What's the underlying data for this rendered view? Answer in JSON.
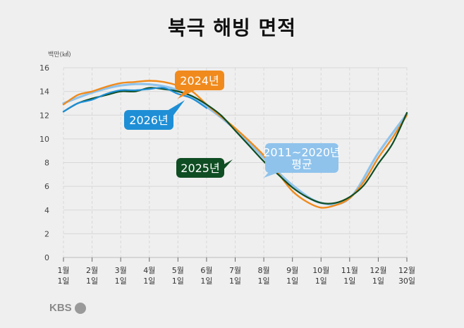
{
  "title": "북극 해빙 면적",
  "unit": "백만(㎢)",
  "logo": "KBS",
  "colors": {
    "2024": "#f08a1c",
    "2025": "#0f4d23",
    "2026": "#1e8fd6",
    "avg": "#8fc3ec",
    "grid": "#d8d8d8"
  },
  "chart_data": {
    "type": "line",
    "title": "북극 해빙 면적",
    "ylabel": "백만(㎢)",
    "ylim": [
      0,
      16
    ],
    "yticks": [
      0,
      2,
      4,
      6,
      8,
      10,
      12,
      14,
      16
    ],
    "x_tick_labels": [
      {
        "month": "1월",
        "day": "1일"
      },
      {
        "month": "2월",
        "day": "1일"
      },
      {
        "month": "3월",
        "day": "1일"
      },
      {
        "month": "4월",
        "day": "1일"
      },
      {
        "month": "5월",
        "day": "1일"
      },
      {
        "month": "6월",
        "day": "1일"
      },
      {
        "month": "7월",
        "day": "1일"
      },
      {
        "month": "8월",
        "day": "1일"
      },
      {
        "month": "9월",
        "day": "1일"
      },
      {
        "month": "10월",
        "day": "1일"
      },
      {
        "month": "11월",
        "day": "1일"
      },
      {
        "month": "12월",
        "day": "1일"
      },
      {
        "month": "12월",
        "day": "30일"
      }
    ],
    "grid": true,
    "series": [
      {
        "name": "2011~2020년 평균",
        "color": "#8fc3ec",
        "x": [
          0,
          1,
          2,
          3,
          4,
          5,
          6,
          7,
          8,
          9,
          10,
          11,
          12
        ],
        "values": [
          13.0,
          13.9,
          14.5,
          14.6,
          14.1,
          12.7,
          10.8,
          8.4,
          6.1,
          4.6,
          5.0,
          8.8,
          12.1
        ]
      },
      {
        "name": "2024년",
        "color": "#f08a1c",
        "x": [
          0,
          0.5,
          1,
          1.5,
          2,
          2.5,
          3,
          3.5,
          4,
          4.5,
          5,
          5.5,
          6,
          6.5,
          7,
          7.5,
          8,
          8.5,
          9,
          9.5,
          10,
          10.5,
          11,
          11.5,
          12
        ],
        "values": [
          12.9,
          13.7,
          14.0,
          14.4,
          14.7,
          14.8,
          14.9,
          14.8,
          14.5,
          14.0,
          12.9,
          11.9,
          10.9,
          9.8,
          8.6,
          7.1,
          5.6,
          4.7,
          4.2,
          4.4,
          5.0,
          6.4,
          8.4,
          10.1,
          12.0
        ]
      },
      {
        "name": "2025년",
        "color": "#0f4d23",
        "x": [
          0,
          0.5,
          1,
          1.5,
          2,
          2.5,
          3,
          3.5,
          4,
          4.5,
          5,
          5.5,
          6,
          6.5,
          7,
          7.5,
          8,
          8.5,
          9,
          9.5,
          10,
          10.5,
          11,
          11.5,
          12
        ],
        "values": [
          12.3,
          13.0,
          13.4,
          13.7,
          14.0,
          14.0,
          14.3,
          14.2,
          14.0,
          13.6,
          12.9,
          12.0,
          10.7,
          9.4,
          8.1,
          7.0,
          5.9,
          5.1,
          4.6,
          4.6,
          5.1,
          6.1,
          7.9,
          9.6,
          12.2
        ]
      },
      {
        "name": "2026년",
        "color": "#1e8fd6",
        "x": [
          0,
          0.5,
          1,
          1.5,
          2,
          2.5,
          3,
          3.5,
          4,
          4.5,
          5
        ],
        "values": [
          12.3,
          13.0,
          13.3,
          13.8,
          14.1,
          14.1,
          14.2,
          14.3,
          13.8,
          13.4,
          12.6
        ]
      }
    ],
    "annotations": [
      {
        "series": "2024년",
        "label": "2024년"
      },
      {
        "series": "2026년",
        "label": "2026년"
      },
      {
        "series": "2025년",
        "label": "2025년"
      },
      {
        "series": "2011~2020년 평균",
        "label_lines": [
          "2011~2020년",
          "평균"
        ]
      }
    ]
  }
}
